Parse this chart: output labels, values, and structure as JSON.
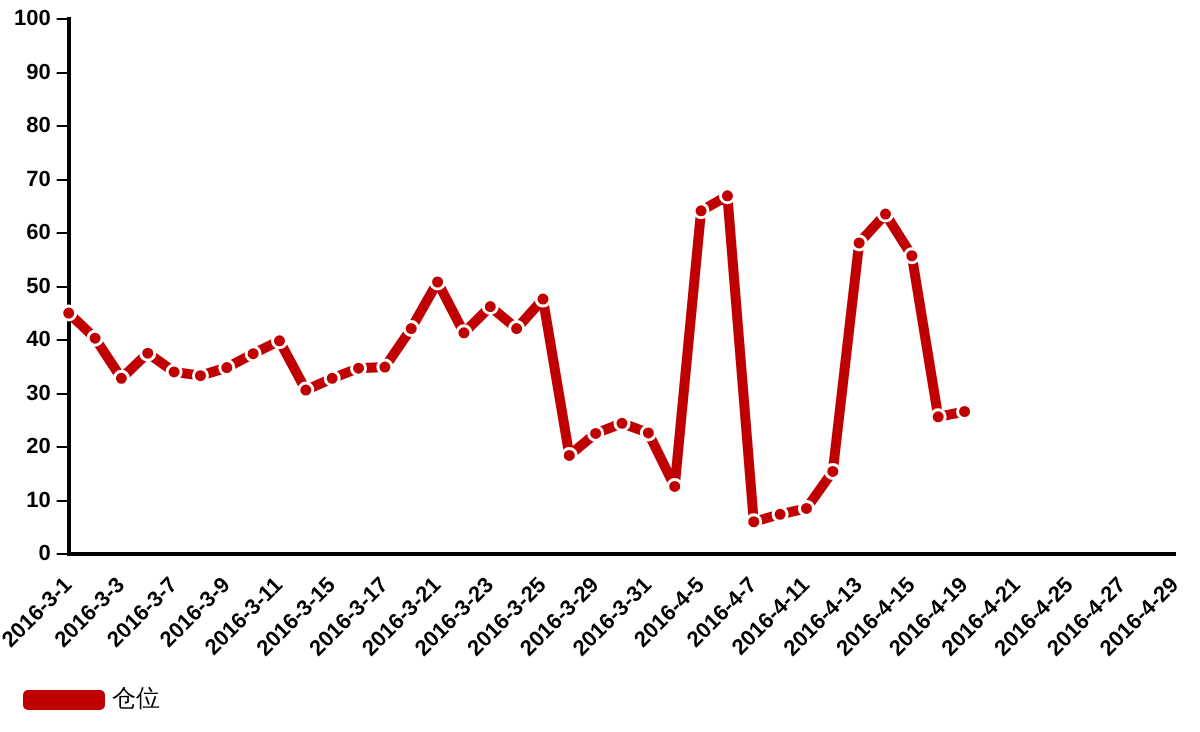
{
  "chart_data": {
    "type": "line",
    "categories": [
      "2016-3-1",
      null,
      "2016-3-3",
      null,
      "2016-3-7",
      null,
      "2016-3-9",
      null,
      "2016-3-11",
      null,
      "2016-3-15",
      null,
      "2016-3-17",
      null,
      "2016-3-21",
      null,
      "2016-3-23",
      null,
      "2016-3-25",
      null,
      "2016-3-29",
      null,
      "2016-3-31",
      null,
      "2016-4-5",
      null,
      "2016-4-7",
      null,
      "2016-4-11",
      null,
      "2016-4-13",
      null,
      "2016-4-15",
      null,
      "2016-4-19",
      null,
      "2016-4-21",
      null,
      "2016-4-25",
      null,
      "2016-4-27",
      null,
      "2016-4-29"
    ],
    "series": [
      {
        "name": "仓位",
        "color": "#c00000",
        "values": [
          45.1,
          40.4,
          32.9,
          37.6,
          34.1,
          33.4,
          34.9,
          37.5,
          39.9,
          30.7,
          32.9,
          34.8,
          35.0,
          42.2,
          50.9,
          41.4,
          46.3,
          42.2,
          47.7,
          18.5,
          22.6,
          24.5,
          22.7,
          12.7,
          64.2,
          67.0,
          6.1,
          7.5,
          8.6,
          15.5,
          58.2,
          63.6,
          55.8,
          25.7,
          26.7,
          null,
          null,
          null,
          null,
          null,
          null,
          null,
          null
        ]
      }
    ],
    "ylim": [
      0,
      100
    ],
    "yticks": [
      0,
      10,
      20,
      30,
      40,
      50,
      60,
      70,
      80,
      90,
      100
    ],
    "grid": false,
    "legend": "bottom left",
    "marker": "circle",
    "line_style": "solid"
  }
}
